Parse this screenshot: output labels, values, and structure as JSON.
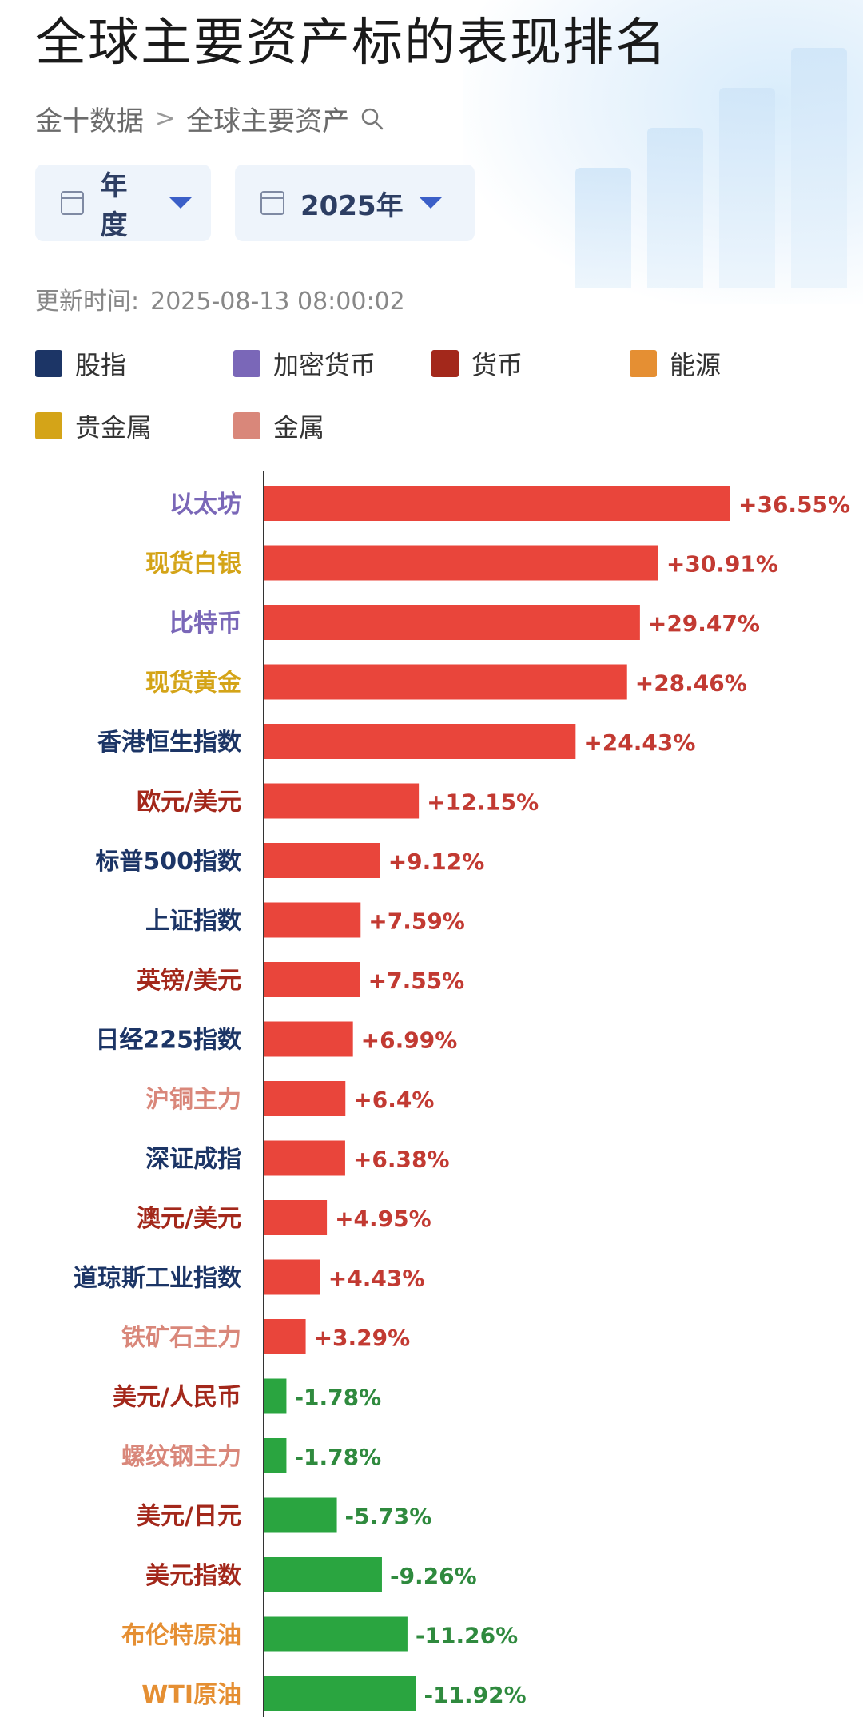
{
  "title": "全球主要资产标的表现排名",
  "breadcrumb": {
    "root": "金十数据",
    "current": "全球主要资产"
  },
  "filters": {
    "period": "年度",
    "year": "2025年"
  },
  "updated": {
    "label": "更新时间:",
    "value": "2025-08-13 08:00:02"
  },
  "legend": [
    {
      "label": "股指",
      "color": "#1c3566"
    },
    {
      "label": "加密货币",
      "color": "#7a67b8"
    },
    {
      "label": "货币",
      "color": "#a3281b"
    },
    {
      "label": "能源",
      "color": "#e58f33"
    },
    {
      "label": "贵金属",
      "color": "#d4a418"
    },
    {
      "label": "金属",
      "color": "#d9877a"
    }
  ],
  "colors": {
    "positive": "#e9453b",
    "negative": "#2aa540",
    "positive_text": "#c23a32",
    "negative_text": "#2f8a3e"
  },
  "chart_data": {
    "type": "bar",
    "orientation": "horizontal",
    "title": "全球主要资产标的表现排名",
    "unit": "%",
    "categories": [
      "以太坊",
      "现货白银",
      "比特币",
      "现货黄金",
      "香港恒生指数",
      "欧元/美元",
      "标普500指数",
      "上证指数",
      "英镑/美元",
      "日经225指数",
      "沪铜主力",
      "深证成指",
      "澳元/美元",
      "道琼斯工业指数",
      "铁矿石主力",
      "美元/人民币",
      "螺纹钢主力",
      "美元/日元",
      "美元指数",
      "布伦特原油",
      "WTI原油"
    ],
    "values": [
      36.55,
      30.91,
      29.47,
      28.46,
      24.43,
      12.15,
      9.12,
      7.59,
      7.55,
      6.99,
      6.4,
      6.38,
      4.95,
      4.43,
      3.29,
      -1.78,
      -1.78,
      -5.73,
      -9.26,
      -11.26,
      -11.92
    ],
    "value_labels": [
      "+36.55%",
      "+30.91%",
      "+29.47%",
      "+28.46%",
      "+24.43%",
      "+12.15%",
      "+9.12%",
      "+7.59%",
      "+7.55%",
      "+6.99%",
      "+6.4%",
      "+6.38%",
      "+4.95%",
      "+4.43%",
      "+3.29%",
      "-1.78%",
      "-1.78%",
      "-5.73%",
      "-9.26%",
      "-11.26%",
      "-11.92%"
    ],
    "asset_class": [
      "加密货币",
      "贵金属",
      "加密货币",
      "贵金属",
      "股指",
      "货币",
      "股指",
      "股指",
      "货币",
      "股指",
      "金属",
      "股指",
      "货币",
      "股指",
      "金属",
      "货币",
      "金属",
      "货币",
      "货币",
      "能源",
      "能源"
    ]
  }
}
